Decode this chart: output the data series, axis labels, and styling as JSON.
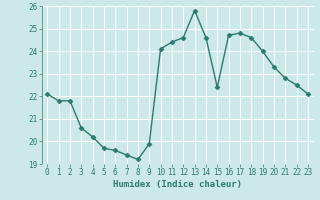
{
  "x": [
    0,
    1,
    2,
    3,
    4,
    5,
    6,
    7,
    8,
    9,
    10,
    11,
    12,
    13,
    14,
    15,
    16,
    17,
    18,
    19,
    20,
    21,
    22,
    23
  ],
  "y": [
    22.1,
    21.8,
    21.8,
    20.6,
    20.2,
    19.7,
    19.6,
    19.4,
    19.2,
    19.9,
    24.1,
    24.4,
    24.6,
    25.8,
    24.6,
    22.4,
    24.7,
    24.8,
    24.6,
    24.0,
    23.3,
    22.8,
    22.5,
    22.1
  ],
  "xlabel": "Humidex (Indice chaleur)",
  "ylabel": "",
  "ylim": [
    19,
    26
  ],
  "xlim_min": -0.5,
  "xlim_max": 23.5,
  "yticks": [
    19,
    20,
    21,
    22,
    23,
    24,
    25,
    26
  ],
  "xticks": [
    0,
    1,
    2,
    3,
    4,
    5,
    6,
    7,
    8,
    9,
    10,
    11,
    12,
    13,
    14,
    15,
    16,
    17,
    18,
    19,
    20,
    21,
    22,
    23
  ],
  "line_color": "#2d7a6e",
  "marker": "D",
  "marker_size": 2.5,
  "bg_color": "#cce8e8",
  "grid_color": "#ffffff",
  "xlabel_color": "#2d7a6e",
  "tick_color": "#2d7a6e",
  "line_width": 1.0,
  "tick_fontsize": 5.5,
  "xlabel_fontsize": 6.5
}
